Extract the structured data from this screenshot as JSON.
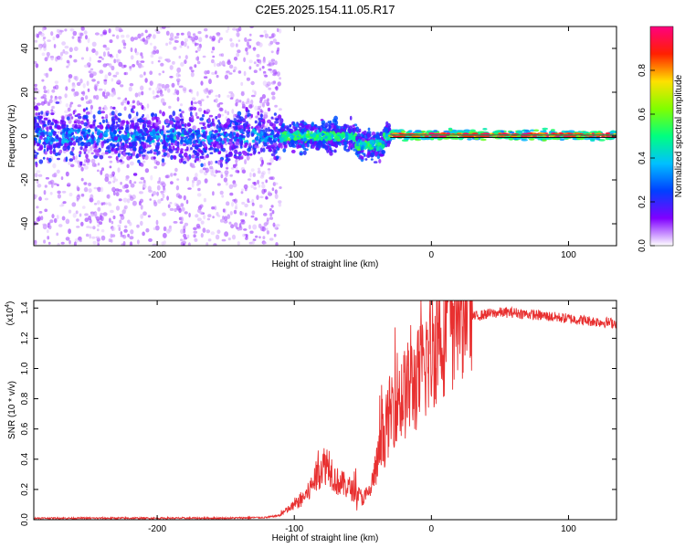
{
  "title": "C2E5.2025.154.11.05.R17",
  "colors": {
    "series": "#e83030",
    "central_trace": "#00a060"
  },
  "chart_data": [
    {
      "type": "heatmap",
      "xlabel": "Height of straight line (km)",
      "ylabel": "Frequency (Hz)",
      "xlim": [
        -290,
        135
      ],
      "ylim": [
        -50,
        50
      ],
      "x_ticks": [
        -200,
        -100,
        0,
        100
      ],
      "x_tick_labels": [
        "-200",
        "-100",
        "0",
        "100"
      ],
      "y_ticks": [
        -40,
        -20,
        0,
        20,
        40
      ],
      "y_tick_labels": [
        "-40",
        "-20",
        "0",
        "20",
        "40"
      ],
      "colorbar": {
        "label": "Normalized spectral amplitude",
        "range": [
          0,
          1
        ],
        "ticks": [
          0,
          0.2,
          0.4,
          0.6,
          0.8
        ],
        "tick_labels": [
          "0.0",
          "0.2",
          "0.4",
          "0.6",
          "0.8"
        ],
        "colormap": [
          "#ffffff",
          "#8000ff",
          "#0040ff",
          "#00c0ff",
          "#00ff80",
          "#80ff00",
          "#ffe000",
          "#ff2000",
          "#ff0080"
        ]
      },
      "description_regions": [
        {
          "x_range": [
            -290,
            -110
          ],
          "freq_center": 0,
          "freq_spread": 45,
          "amplitude": 0.08
        },
        {
          "x_range": [
            -290,
            -110
          ],
          "freq_center": 0,
          "freq_spread": 10,
          "amplitude": 0.2
        },
        {
          "x_range": [
            -110,
            -30
          ],
          "freq_center": 0,
          "freq_spread": 6,
          "amplitude": 0.45
        },
        {
          "x_range": [
            -30,
            135
          ],
          "freq_center": 0.5,
          "freq_spread": 1,
          "amplitude": 0.95
        }
      ]
    },
    {
      "type": "line",
      "xlabel": "Height of straight line (km)",
      "ylabel": "SNR (10 * v/v)",
      "y_multiplier": "(x10^4)",
      "xlim": [
        -290,
        135
      ],
      "ylim": [
        0,
        1.45
      ],
      "x_ticks": [
        -200,
        -100,
        0,
        100
      ],
      "x_tick_labels": [
        "-200",
        "-100",
        "0",
        "100"
      ],
      "y_ticks": [
        0,
        0.2,
        0.4,
        0.6,
        0.8,
        1.0,
        1.2,
        1.4
      ],
      "y_tick_labels": [
        "0.0",
        "0.2",
        "0.4",
        "0.6",
        "0.8",
        "1.0",
        "1.2",
        "1.4"
      ],
      "series": [
        {
          "x": [
            -290,
            -250,
            -200,
            -150,
            -120,
            -110,
            -100,
            -90,
            -80,
            -75,
            -70,
            -60,
            -50,
            -45,
            -40,
            -35,
            -30,
            -25,
            -20,
            -15,
            -10,
            -5,
            0,
            5,
            10,
            15,
            20,
            25,
            30,
            40,
            50,
            60,
            70,
            80,
            90,
            100,
            110,
            120,
            135
          ],
          "y": [
            0.01,
            0.01,
            0.01,
            0.01,
            0.015,
            0.03,
            0.08,
            0.15,
            0.3,
            0.32,
            0.22,
            0.18,
            0.12,
            0.15,
            0.3,
            0.45,
            0.6,
            0.7,
            0.7,
            0.75,
            0.78,
            0.85,
            0.95,
            1.05,
            1.12,
            1.2,
            1.25,
            1.3,
            1.34,
            1.36,
            1.37,
            1.37,
            1.36,
            1.35,
            1.34,
            1.33,
            1.32,
            1.31,
            1.3
          ]
        }
      ]
    }
  ]
}
